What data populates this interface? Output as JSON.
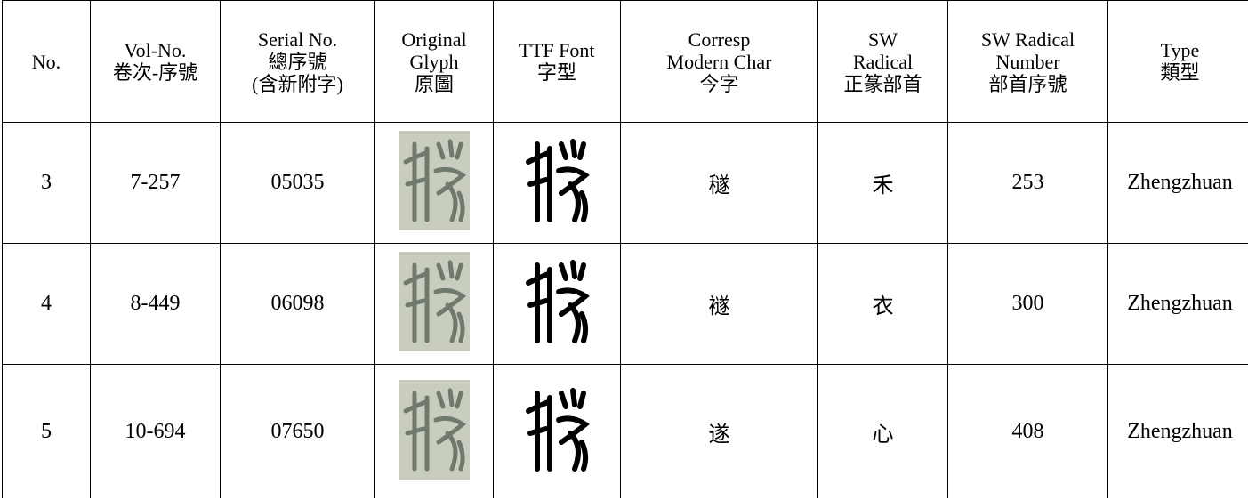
{
  "table": {
    "header": [
      [
        "No."
      ],
      [
        "Vol-No.",
        "卷次-序號"
      ],
      [
        "Serial No.",
        "總序號",
        "(含新附字)"
      ],
      [
        "Original",
        "Glyph",
        "原圖"
      ],
      [
        "TTF Font",
        "字型"
      ],
      [
        "Corresp",
        "Modern Char",
        "今字"
      ],
      [
        "SW",
        "Radical",
        "正篆部首"
      ],
      [
        "SW Radical",
        "Number",
        "部首序號"
      ],
      [
        "Type",
        "類型"
      ]
    ],
    "rows": [
      {
        "no": "3",
        "vol_no": "7-257",
        "serial_no": "05035",
        "modern_char": "穟",
        "radical": "禾",
        "radical_number": "253",
        "type": "Zhengzhuan"
      },
      {
        "no": "4",
        "vol_no": "8-449",
        "serial_no": "06098",
        "modern_char": "襚",
        "radical": "衣",
        "radical_number": "300",
        "type": "Zhengzhuan"
      },
      {
        "no": "5",
        "vol_no": "10-694",
        "serial_no": "07650",
        "modern_char": "遂",
        "radical": "心",
        "radical_number": "408",
        "type": "Zhengzhuan"
      }
    ]
  }
}
